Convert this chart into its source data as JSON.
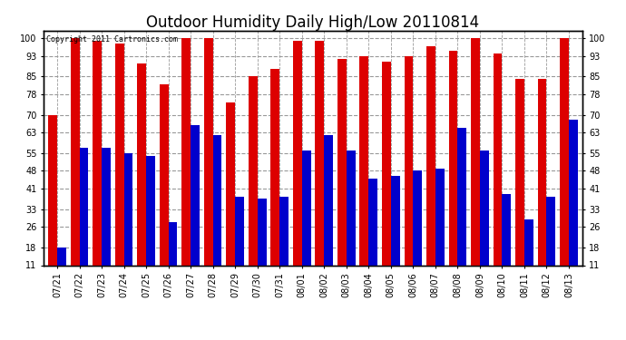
{
  "title": "Outdoor Humidity Daily High/Low 20110814",
  "copyright": "Copyright 2011 Cartronics.com",
  "dates": [
    "07/21",
    "07/22",
    "07/23",
    "07/24",
    "07/25",
    "07/26",
    "07/27",
    "07/28",
    "07/29",
    "07/30",
    "07/31",
    "08/01",
    "08/02",
    "08/03",
    "08/04",
    "08/05",
    "08/06",
    "08/07",
    "08/08",
    "08/09",
    "08/10",
    "08/11",
    "08/12",
    "08/13"
  ],
  "highs": [
    70,
    100,
    99,
    98,
    90,
    82,
    100,
    100,
    75,
    85,
    88,
    99,
    99,
    92,
    93,
    91,
    93,
    97,
    95,
    100,
    94,
    84,
    84,
    100
  ],
  "lows": [
    18,
    57,
    57,
    55,
    54,
    28,
    66,
    62,
    38,
    37,
    38,
    56,
    62,
    56,
    45,
    46,
    48,
    49,
    65,
    56,
    39,
    29,
    38,
    68
  ],
  "bar_width": 0.4,
  "high_color": "#dd0000",
  "low_color": "#0000cc",
  "background_color": "#ffffff",
  "grid_color": "#999999",
  "yticks": [
    11,
    18,
    26,
    33,
    41,
    48,
    55,
    63,
    70,
    78,
    85,
    93,
    100
  ],
  "ymin": 11,
  "ymax": 103,
  "title_fontsize": 12,
  "tick_fontsize": 7
}
